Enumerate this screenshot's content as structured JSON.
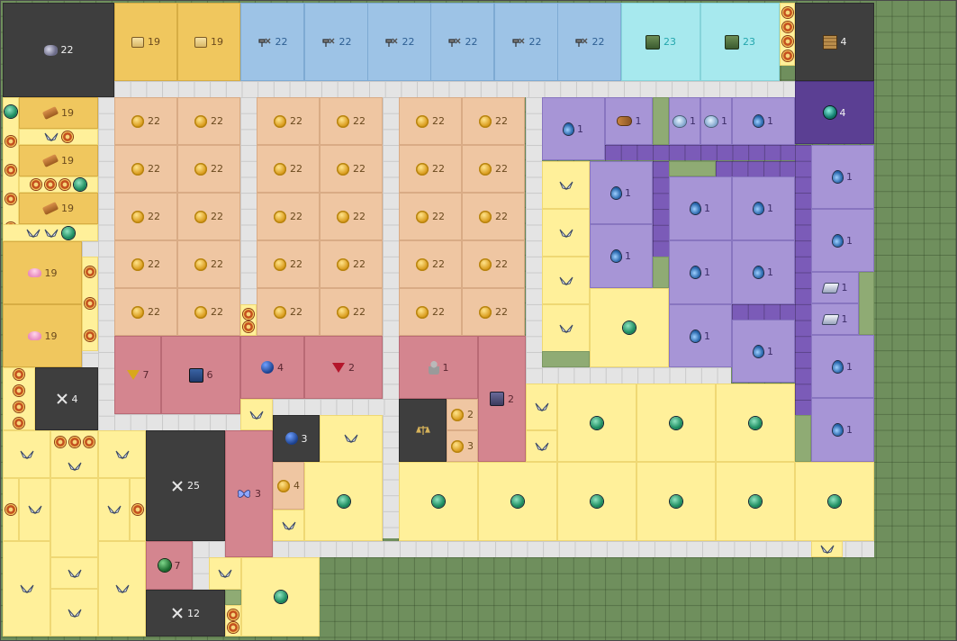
{
  "icons": {
    "coin": "gold-coin-icon",
    "deco": "flower-medallion-icon",
    "orb": "green-orb-icon",
    "drop": "mana-drop-icon",
    "wing": "wings-icon",
    "scroll": "scroll-icon",
    "hammer": "hammer-tool-icon",
    "avatar": "character-portrait-icon"
  },
  "board": {
    "dark_tiles": [
      {
        "id": "rocks",
        "count": "22"
      },
      {
        "id": "swords-a",
        "count": "4"
      },
      {
        "id": "swords-b",
        "count": "25"
      },
      {
        "id": "swords-c",
        "count": "12"
      },
      {
        "id": "robot",
        "count": "3"
      },
      {
        "id": "scales",
        "count": ""
      },
      {
        "id": "crate",
        "count": "4"
      }
    ],
    "scroll_tiles": [
      "19",
      "19"
    ],
    "hammer_tiles": [
      "22",
      "22",
      "22",
      "22",
      "22",
      "22"
    ],
    "portrait_tiles": [
      "23",
      "23"
    ],
    "coin_count": "22",
    "plank_count": "19",
    "pink_count": "19",
    "rose_tiles": [
      {
        "id": "yellow-gem",
        "count": "7"
      },
      {
        "id": "blue-book",
        "count": "6"
      },
      {
        "id": "blue-sphere",
        "count": "4"
      },
      {
        "id": "red-gem",
        "count": "2"
      },
      {
        "id": "figure",
        "count": "1"
      },
      {
        "id": "chest",
        "count": "2"
      },
      {
        "id": "butterfly",
        "count": "3"
      },
      {
        "id": "green-sphere",
        "count": "7"
      }
    ],
    "small_coin_counts": [
      "2",
      "3",
      "4"
    ],
    "purple_count": "1",
    "deep_purple_count": "4"
  }
}
